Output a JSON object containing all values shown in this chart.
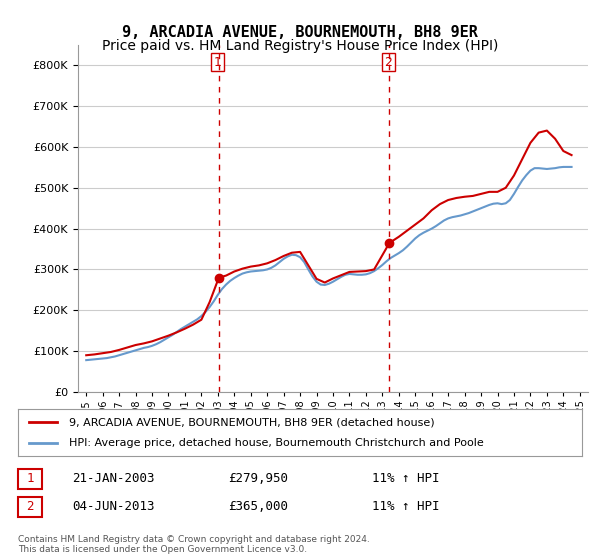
{
  "title": "9, ARCADIA AVENUE, BOURNEMOUTH, BH8 9ER",
  "subtitle": "Price paid vs. HM Land Registry's House Price Index (HPI)",
  "legend_label_red": "9, ARCADIA AVENUE, BOURNEMOUTH, BH8 9ER (detached house)",
  "legend_label_blue": "HPI: Average price, detached house, Bournemouth Christchurch and Poole",
  "footer": "Contains HM Land Registry data © Crown copyright and database right 2024.\nThis data is licensed under the Open Government Licence v3.0.",
  "sale1_label": "1",
  "sale1_date": "21-JAN-2003",
  "sale1_price": "£279,950",
  "sale1_hpi": "11% ↑ HPI",
  "sale2_label": "2",
  "sale2_date": "04-JUN-2013",
  "sale2_price": "£365,000",
  "sale2_hpi": "11% ↑ HPI",
  "marker1_x": 2003.06,
  "marker1_y": 279950,
  "marker2_x": 2013.43,
  "marker2_y": 365000,
  "vline1_x": 2003.06,
  "vline2_x": 2013.43,
  "ylim": [
    0,
    850000
  ],
  "xlim_start": 1994.5,
  "xlim_end": 2025.5,
  "hpi_years": [
    1995,
    1995.25,
    1995.5,
    1995.75,
    1996,
    1996.25,
    1996.5,
    1996.75,
    1997,
    1997.25,
    1997.5,
    1997.75,
    1998,
    1998.25,
    1998.5,
    1998.75,
    1999,
    1999.25,
    1999.5,
    1999.75,
    2000,
    2000.25,
    2000.5,
    2000.75,
    2001,
    2001.25,
    2001.5,
    2001.75,
    2002,
    2002.25,
    2002.5,
    2002.75,
    2003,
    2003.25,
    2003.5,
    2003.75,
    2004,
    2004.25,
    2004.5,
    2004.75,
    2005,
    2005.25,
    2005.5,
    2005.75,
    2006,
    2006.25,
    2006.5,
    2006.75,
    2007,
    2007.25,
    2007.5,
    2007.75,
    2008,
    2008.25,
    2008.5,
    2008.75,
    2009,
    2009.25,
    2009.5,
    2009.75,
    2010,
    2010.25,
    2010.5,
    2010.75,
    2011,
    2011.25,
    2011.5,
    2011.75,
    2012,
    2012.25,
    2012.5,
    2012.75,
    2013,
    2013.25,
    2013.5,
    2013.75,
    2014,
    2014.25,
    2014.5,
    2014.75,
    2015,
    2015.25,
    2015.5,
    2015.75,
    2016,
    2016.25,
    2016.5,
    2016.75,
    2017,
    2017.25,
    2017.5,
    2017.75,
    2018,
    2018.25,
    2018.5,
    2018.75,
    2019,
    2019.25,
    2019.5,
    2019.75,
    2020,
    2020.25,
    2020.5,
    2020.75,
    2021,
    2021.25,
    2021.5,
    2021.75,
    2022,
    2022.25,
    2022.5,
    2022.75,
    2023,
    2023.25,
    2023.5,
    2023.75,
    2024,
    2024.25,
    2024.5
  ],
  "hpi_values": [
    78000,
    79000,
    80000,
    81000,
    82000,
    83000,
    85000,
    87000,
    90000,
    93000,
    96000,
    99000,
    102000,
    105000,
    108000,
    110000,
    113000,
    117000,
    122000,
    128000,
    134000,
    140000,
    147000,
    154000,
    160000,
    166000,
    172000,
    178000,
    186000,
    196000,
    208000,
    222000,
    238000,
    252000,
    263000,
    272000,
    279000,
    285000,
    290000,
    293000,
    295000,
    296000,
    297000,
    298000,
    300000,
    304000,
    310000,
    318000,
    326000,
    332000,
    336000,
    335000,
    330000,
    318000,
    300000,
    283000,
    270000,
    263000,
    262000,
    265000,
    270000,
    276000,
    282000,
    287000,
    289000,
    288000,
    287000,
    287000,
    288000,
    291000,
    296000,
    303000,
    311000,
    320000,
    328000,
    334000,
    340000,
    347000,
    356000,
    366000,
    376000,
    384000,
    390000,
    395000,
    400000,
    406000,
    413000,
    420000,
    425000,
    428000,
    430000,
    432000,
    435000,
    438000,
    442000,
    446000,
    450000,
    454000,
    458000,
    461000,
    462000,
    460000,
    462000,
    470000,
    485000,
    502000,
    518000,
    531000,
    542000,
    548000,
    548000,
    547000,
    546000,
    547000,
    548000,
    550000,
    551000,
    551000,
    551000
  ],
  "price_years": [
    1995,
    2003.06,
    2013.43
  ],
  "price_values": [
    90000,
    279950,
    365000
  ],
  "red_line_years": [
    1995,
    1995.5,
    1996,
    1996.5,
    1997,
    1997.5,
    1998,
    1998.5,
    1999,
    1999.5,
    2000,
    2000.5,
    2001,
    2001.5,
    2002,
    2002.5,
    2003.06,
    2003.5,
    2004,
    2004.5,
    2005,
    2005.5,
    2006,
    2006.5,
    2007,
    2007.5,
    2008,
    2008.5,
    2009,
    2009.5,
    2010,
    2010.5,
    2011,
    2011.5,
    2012,
    2012.5,
    2013.43,
    2014,
    2014.5,
    2015,
    2015.5,
    2016,
    2016.5,
    2017,
    2017.5,
    2018,
    2018.5,
    2019,
    2019.5,
    2020,
    2020.5,
    2021,
    2021.5,
    2022,
    2022.5,
    2023,
    2023.5,
    2024,
    2024.5
  ],
  "red_line_values": [
    90000,
    92000,
    95000,
    98000,
    103000,
    109000,
    115000,
    119000,
    124000,
    131000,
    138000,
    146000,
    155000,
    165000,
    177000,
    220000,
    279950,
    285000,
    295000,
    302000,
    307000,
    310000,
    315000,
    323000,
    333000,
    341000,
    343000,
    310000,
    277000,
    268000,
    278000,
    286000,
    294000,
    295000,
    296000,
    300000,
    365000,
    380000,
    395000,
    410000,
    425000,
    445000,
    460000,
    470000,
    475000,
    478000,
    480000,
    485000,
    490000,
    490000,
    500000,
    530000,
    570000,
    610000,
    635000,
    640000,
    620000,
    590000,
    580000
  ],
  "bg_color": "#ffffff",
  "plot_bg_color": "#ffffff",
  "grid_color": "#cccccc",
  "red_color": "#cc0000",
  "blue_color": "#6699cc",
  "vline_color": "#cc0000",
  "marker_color": "#cc0000",
  "title_fontsize": 11,
  "subtitle_fontsize": 10
}
